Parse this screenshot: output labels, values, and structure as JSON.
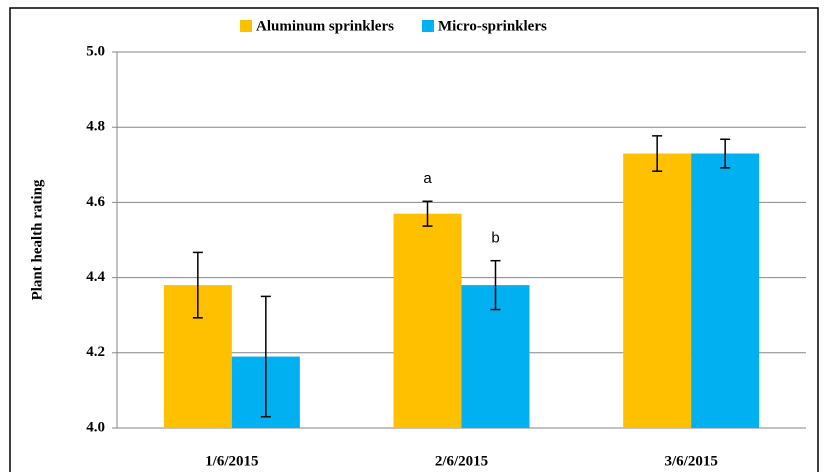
{
  "chart_data": {
    "type": "bar",
    "y_label": "Plant health rating",
    "categories": [
      "1/6/2015",
      "2/6/2015",
      "3/6/2015"
    ],
    "series": [
      {
        "name": "Aluminum sprinklers",
        "color": "#FFC000",
        "values": [
          4.38,
          4.57,
          4.73
        ],
        "errors": [
          0.087,
          0.033,
          0.047
        ]
      },
      {
        "name": "Micro-sprinklers",
        "color": "#00B0F0",
        "values": [
          4.19,
          4.38,
          4.73
        ],
        "errors": [
          0.16,
          0.065,
          0.038
        ]
      }
    ],
    "annotations": [
      {
        "text": "a"
      },
      {
        "text": "b"
      }
    ],
    "ylim": [
      4.0,
      5.0
    ],
    "yticks": [
      {
        "value": 4.0,
        "label": "4.0"
      },
      4.2,
      4.4,
      4.6,
      4.8,
      {
        "value": 5.0,
        "label": "5.0"
      }
    ],
    "grid": true,
    "legend": "top"
  }
}
